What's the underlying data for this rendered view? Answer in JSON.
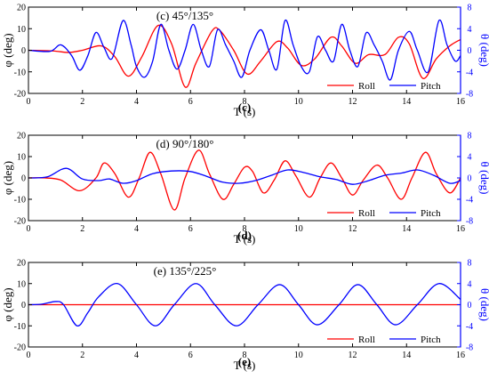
{
  "colors": {
    "roll": "#ff0000",
    "pitch": "#0000ff",
    "axis": "#000000",
    "right_axis": "#0000ff"
  },
  "chart_data": [
    {
      "type": "line",
      "panel_label": "(c)",
      "inner_title": "(c) 45°/135°",
      "xlabel": "T (s)",
      "ylabel": "φ (deg)",
      "y2label": "θ (deg)",
      "xlim": [
        0,
        16
      ],
      "ylim": [
        -20,
        20
      ],
      "y2lim": [
        -8,
        8
      ],
      "x_ticks": [
        "0",
        "2",
        "4",
        "6",
        "8",
        "10",
        "12",
        "14",
        "16"
      ],
      "y_ticks": [
        "-20",
        "-10",
        "0",
        "10",
        "20"
      ],
      "y2_ticks": [
        "-8",
        "-4",
        "0",
        "4",
        "8"
      ],
      "legend": [
        "Roll",
        "Pitch"
      ],
      "legend_position": "bottom-right",
      "series": [
        {
          "name": "Roll",
          "axis": "left",
          "points": [
            [
              0,
              0
            ],
            [
              0.9,
              -0.3
            ],
            [
              1.5,
              -1
            ],
            [
              2,
              0
            ],
            [
              2.7,
              2
            ],
            [
              3.2,
              -3
            ],
            [
              3.7,
              -12
            ],
            [
              4.2,
              -3
            ],
            [
              4.8,
              11.5
            ],
            [
              5.3,
              3
            ],
            [
              5.8,
              -17
            ],
            [
              6.2,
              -6
            ],
            [
              6.8,
              9
            ],
            [
              7.1,
              9
            ],
            [
              7.6,
              0
            ],
            [
              8.1,
              -11
            ],
            [
              8.6,
              -5
            ],
            [
              9.2,
              4
            ],
            [
              9.6,
              1
            ],
            [
              10.1,
              -7
            ],
            [
              10.6,
              -4
            ],
            [
              11.2,
              6
            ],
            [
              11.6,
              2
            ],
            [
              12.1,
              -6
            ],
            [
              12.6,
              -2
            ],
            [
              13.2,
              -2
            ],
            [
              13.7,
              6
            ],
            [
              14.1,
              3
            ],
            [
              14.6,
              -13
            ],
            [
              15.1,
              -4
            ],
            [
              15.6,
              2
            ],
            [
              16,
              5
            ]
          ]
        },
        {
          "name": "Pitch",
          "axis": "right",
          "points": [
            [
              0,
              0
            ],
            [
              0.8,
              -0.2
            ],
            [
              1.2,
              1
            ],
            [
              1.6,
              -1
            ],
            [
              1.9,
              -3.7
            ],
            [
              2.2,
              -1
            ],
            [
              2.5,
              3.3
            ],
            [
              2.8,
              0.5
            ],
            [
              3.1,
              -1.5
            ],
            [
              3.5,
              5.5
            ],
            [
              3.8,
              1
            ],
            [
              4.0,
              -3
            ],
            [
              4.3,
              -5
            ],
            [
              4.6,
              -2
            ],
            [
              4.9,
              4.8
            ],
            [
              5.2,
              0
            ],
            [
              5.5,
              -3.5
            ],
            [
              5.8,
              0
            ],
            [
              6.1,
              4.8
            ],
            [
              6.4,
              0
            ],
            [
              6.7,
              -3
            ],
            [
              7.0,
              3.8
            ],
            [
              7.3,
              1
            ],
            [
              7.6,
              -2
            ],
            [
              7.9,
              -5
            ],
            [
              8.2,
              0
            ],
            [
              8.6,
              3.8
            ],
            [
              8.9,
              0
            ],
            [
              9.2,
              -3.5
            ],
            [
              9.5,
              5.5
            ],
            [
              9.8,
              1
            ],
            [
              10.1,
              -3
            ],
            [
              10.4,
              -4
            ],
            [
              10.7,
              2.5
            ],
            [
              11.0,
              0
            ],
            [
              11.3,
              -2
            ],
            [
              11.6,
              4.8
            ],
            [
              11.9,
              0
            ],
            [
              12.2,
              -3
            ],
            [
              12.5,
              3.2
            ],
            [
              12.8,
              1
            ],
            [
              13.1,
              -2
            ],
            [
              13.4,
              -5.5
            ],
            [
              13.7,
              0
            ],
            [
              14.1,
              3.5
            ],
            [
              14.4,
              0
            ],
            [
              14.8,
              -4
            ],
            [
              15.2,
              5.5
            ],
            [
              15.5,
              1
            ],
            [
              15.8,
              -2
            ],
            [
              16,
              -1
            ]
          ]
        }
      ]
    },
    {
      "type": "line",
      "panel_label": "(d)",
      "inner_title": "(d) 90°/180°",
      "xlabel": "T (s)",
      "ylabel": "φ (deg)",
      "y2label": "θ (deg)",
      "xlim": [
        0,
        16
      ],
      "ylim": [
        -20,
        20
      ],
      "y2lim": [
        -8,
        8
      ],
      "x_ticks": [
        "0",
        "2",
        "4",
        "6",
        "8",
        "10",
        "12",
        "14",
        "16"
      ],
      "y_ticks": [
        "-20",
        "-10",
        "0",
        "10",
        "20"
      ],
      "y2_ticks": [
        "-8",
        "-4",
        "0",
        "4",
        "8"
      ],
      "legend": [
        "Roll",
        "Pitch"
      ],
      "legend_position": "bottom-right",
      "series": [
        {
          "name": "Roll",
          "axis": "left",
          "points": [
            [
              0,
              0
            ],
            [
              0.6,
              0
            ],
            [
              1.2,
              -1
            ],
            [
              1.9,
              -6
            ],
            [
              2.5,
              0
            ],
            [
              2.8,
              7
            ],
            [
              3.2,
              2
            ],
            [
              3.7,
              -9
            ],
            [
              4.1,
              0
            ],
            [
              4.5,
              12
            ],
            [
              4.9,
              2
            ],
            [
              5.4,
              -15
            ],
            [
              5.8,
              0
            ],
            [
              6.3,
              13
            ],
            [
              6.7,
              2
            ],
            [
              7.2,
              -10
            ],
            [
              7.6,
              -3
            ],
            [
              8.0,
              5
            ],
            [
              8.3,
              3
            ],
            [
              8.7,
              -7
            ],
            [
              9.1,
              -1
            ],
            [
              9.5,
              8
            ],
            [
              9.9,
              1
            ],
            [
              10.4,
              -9
            ],
            [
              10.8,
              0
            ],
            [
              11.2,
              7
            ],
            [
              11.6,
              0
            ],
            [
              12.0,
              -8
            ],
            [
              12.4,
              -1
            ],
            [
              12.9,
              6
            ],
            [
              13.3,
              0
            ],
            [
              13.8,
              -10
            ],
            [
              14.2,
              0
            ],
            [
              14.7,
              12
            ],
            [
              15.1,
              2
            ],
            [
              15.6,
              -7
            ],
            [
              16,
              0
            ]
          ]
        },
        {
          "name": "Pitch",
          "axis": "right",
          "points": [
            [
              0,
              0
            ],
            [
              0.7,
              0.2
            ],
            [
              1.4,
              1.8
            ],
            [
              2.0,
              -0.2
            ],
            [
              2.6,
              -0.5
            ],
            [
              3.0,
              -0.2
            ],
            [
              3.5,
              -1
            ],
            [
              4.0,
              -0.5
            ],
            [
              4.6,
              0.8
            ],
            [
              5.3,
              1.3
            ],
            [
              6.0,
              1.2
            ],
            [
              6.6,
              0.3
            ],
            [
              7.2,
              -0.8
            ],
            [
              7.8,
              -1
            ],
            [
              8.4,
              -0.5
            ],
            [
              9.0,
              0.5
            ],
            [
              9.6,
              1.5
            ],
            [
              10.2,
              1
            ],
            [
              10.8,
              0.2
            ],
            [
              11.4,
              -0.3
            ],
            [
              12.0,
              -1.2
            ],
            [
              12.6,
              -0.5
            ],
            [
              13.2,
              0.5
            ],
            [
              13.8,
              0.9
            ],
            [
              14.4,
              1.5
            ],
            [
              15.0,
              0.5
            ],
            [
              15.6,
              -1
            ],
            [
              16,
              -0.5
            ]
          ]
        }
      ]
    },
    {
      "type": "line",
      "panel_label": "(e)",
      "inner_title": "(e) 135°/225°",
      "xlabel": "T (s)",
      "ylabel": "φ (deg)",
      "y2label": "θ (deg)",
      "xlim": [
        0,
        16
      ],
      "ylim": [
        -20,
        20
      ],
      "y2lim": [
        -8,
        8
      ],
      "x_ticks": [
        "0",
        "2",
        "4",
        "6",
        "8",
        "10",
        "12",
        "14",
        "16"
      ],
      "y_ticks": [
        "-20",
        "-10",
        "0",
        "10",
        "20"
      ],
      "y2_ticks": [
        "-8",
        "-4",
        "0",
        "4",
        "8"
      ],
      "legend": [
        "Roll",
        "Pitch"
      ],
      "legend_position": "bottom-right",
      "series": [
        {
          "name": "Roll",
          "axis": "left",
          "points": [
            [
              0,
              0
            ],
            [
              16,
              0
            ]
          ]
        },
        {
          "name": "Pitch",
          "axis": "right",
          "points": [
            [
              0,
              0
            ],
            [
              0.5,
              0.1
            ],
            [
              1.0,
              0.6
            ],
            [
              1.3,
              0
            ],
            [
              1.8,
              -4
            ],
            [
              2.2,
              -1.5
            ],
            [
              2.6,
              1.5
            ],
            [
              3.3,
              4
            ],
            [
              4.0,
              0
            ],
            [
              4.7,
              -4
            ],
            [
              5.4,
              0
            ],
            [
              6.2,
              4
            ],
            [
              6.9,
              0
            ],
            [
              7.7,
              -4
            ],
            [
              8.5,
              0
            ],
            [
              9.3,
              3.8
            ],
            [
              10.0,
              0
            ],
            [
              10.7,
              -3.8
            ],
            [
              11.5,
              0
            ],
            [
              12.2,
              3.8
            ],
            [
              12.9,
              0
            ],
            [
              13.6,
              -3.8
            ],
            [
              14.4,
              0
            ],
            [
              15.2,
              4
            ],
            [
              16,
              1
            ]
          ]
        }
      ]
    }
  ]
}
